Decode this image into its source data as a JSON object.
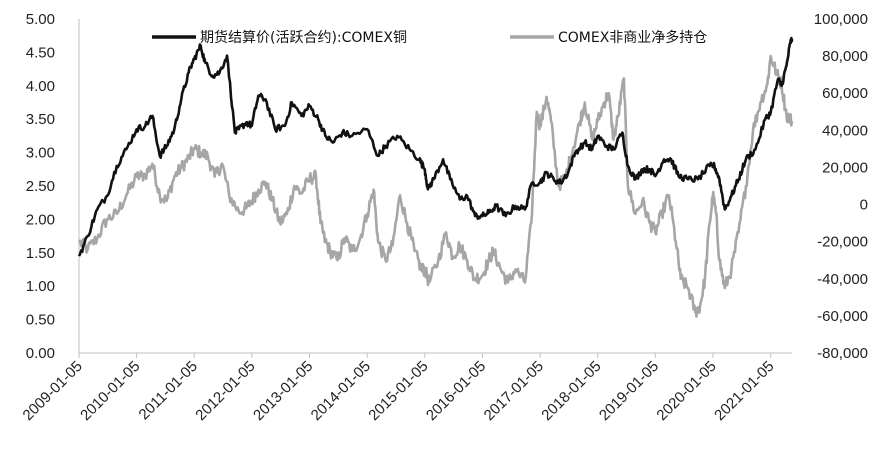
{
  "chart_data": {
    "type": "line",
    "title": "",
    "xlabel": "",
    "ylabel_left": "",
    "ylabel_right": "",
    "ylim_left": [
      0,
      5
    ],
    "ylim_right": [
      -80000,
      100000
    ],
    "xlim": [
      "2009-01-05",
      "2021-05-20"
    ],
    "left_ticks": [
      "0.00",
      "0.50",
      "1.00",
      "1.50",
      "2.00",
      "2.50",
      "3.00",
      "3.50",
      "4.00",
      "4.50",
      "5.00"
    ],
    "right_ticks": [
      "-80,000",
      "-60,000",
      "-40,000",
      "-20,000",
      "0",
      "20,000",
      "40,000",
      "60,000",
      "80,000",
      "100,000"
    ],
    "x_ticks": [
      "2009-01-05",
      "2010-01-05",
      "2011-01-05",
      "2012-01-05",
      "2013-01-05",
      "2014-01-05",
      "2015-01-05",
      "2016-01-05",
      "2017-01-05",
      "2018-01-05",
      "2019-01-05",
      "2020-01-05",
      "2021-01-05"
    ],
    "legend_position": "top",
    "grid": false,
    "series": [
      {
        "name": "期货结算价(活跃合约):COMEX铜",
        "axis": "left",
        "color": "#111111",
        "points": [
          [
            "2009-01-05",
            1.45
          ],
          [
            "2009-03-01",
            1.75
          ],
          [
            "2009-05-01",
            2.15
          ],
          [
            "2009-07-01",
            2.35
          ],
          [
            "2009-09-01",
            2.8
          ],
          [
            "2009-11-01",
            3.05
          ],
          [
            "2010-01-05",
            3.35
          ],
          [
            "2010-03-01",
            3.4
          ],
          [
            "2010-04-15",
            3.55
          ],
          [
            "2010-06-01",
            2.95
          ],
          [
            "2010-07-15",
            3.1
          ],
          [
            "2010-09-01",
            3.35
          ],
          [
            "2010-10-15",
            3.8
          ],
          [
            "2010-12-01",
            4.2
          ],
          [
            "2011-01-05",
            4.4
          ],
          [
            "2011-02-15",
            4.6
          ],
          [
            "2011-03-15",
            4.35
          ],
          [
            "2011-05-01",
            4.15
          ],
          [
            "2011-06-15",
            4.2
          ],
          [
            "2011-08-01",
            4.45
          ],
          [
            "2011-09-20",
            3.3
          ],
          [
            "2011-10-15",
            3.35
          ],
          [
            "2011-12-01",
            3.45
          ],
          [
            "2012-01-05",
            3.4
          ],
          [
            "2012-02-15",
            3.85
          ],
          [
            "2012-04-01",
            3.8
          ],
          [
            "2012-06-01",
            3.35
          ],
          [
            "2012-08-01",
            3.4
          ],
          [
            "2012-09-15",
            3.75
          ],
          [
            "2012-11-15",
            3.55
          ],
          [
            "2013-01-05",
            3.7
          ],
          [
            "2013-03-01",
            3.5
          ],
          [
            "2013-04-15",
            3.25
          ],
          [
            "2013-06-01",
            3.15
          ],
          [
            "2013-08-01",
            3.3
          ],
          [
            "2013-10-01",
            3.25
          ],
          [
            "2014-01-05",
            3.35
          ],
          [
            "2014-03-15",
            2.95
          ],
          [
            "2014-05-01",
            3.1
          ],
          [
            "2014-07-15",
            3.25
          ],
          [
            "2014-10-01",
            3.05
          ],
          [
            "2014-12-01",
            2.9
          ],
          [
            "2015-01-05",
            2.75
          ],
          [
            "2015-01-25",
            2.45
          ],
          [
            "2015-03-01",
            2.6
          ],
          [
            "2015-05-01",
            2.9
          ],
          [
            "2015-06-15",
            2.6
          ],
          [
            "2015-08-15",
            2.3
          ],
          [
            "2015-10-01",
            2.35
          ],
          [
            "2015-11-20",
            2.05
          ],
          [
            "2016-01-05",
            2.05
          ],
          [
            "2016-02-15",
            2.1
          ],
          [
            "2016-04-01",
            2.2
          ],
          [
            "2016-06-01",
            2.05
          ],
          [
            "2016-08-01",
            2.2
          ],
          [
            "2016-10-01",
            2.15
          ],
          [
            "2016-11-15",
            2.55
          ],
          [
            "2017-01-05",
            2.55
          ],
          [
            "2017-02-15",
            2.7
          ],
          [
            "2017-04-01",
            2.6
          ],
          [
            "2017-05-15",
            2.55
          ],
          [
            "2017-07-01",
            2.7
          ],
          [
            "2017-08-15",
            3.0
          ],
          [
            "2017-10-15",
            3.15
          ],
          [
            "2017-12-01",
            3.05
          ],
          [
            "2018-01-05",
            3.25
          ],
          [
            "2018-03-01",
            3.1
          ],
          [
            "2018-04-15",
            3.05
          ],
          [
            "2018-06-10",
            3.3
          ],
          [
            "2018-07-15",
            2.8
          ],
          [
            "2018-09-01",
            2.6
          ],
          [
            "2018-10-15",
            2.75
          ],
          [
            "2018-12-01",
            2.75
          ],
          [
            "2019-01-05",
            2.65
          ],
          [
            "2019-03-01",
            2.9
          ],
          [
            "2019-04-15",
            2.9
          ],
          [
            "2019-06-01",
            2.65
          ],
          [
            "2019-08-01",
            2.6
          ],
          [
            "2019-10-01",
            2.6
          ],
          [
            "2019-12-15",
            2.8
          ],
          [
            "2020-01-15",
            2.8
          ],
          [
            "2020-02-15",
            2.6
          ],
          [
            "2020-03-20",
            2.15
          ],
          [
            "2020-05-01",
            2.35
          ],
          [
            "2020-06-15",
            2.6
          ],
          [
            "2020-08-01",
            2.9
          ],
          [
            "2020-10-01",
            3.05
          ],
          [
            "2020-12-01",
            3.5
          ],
          [
            "2021-01-05",
            3.6
          ],
          [
            "2021-02-20",
            4.1
          ],
          [
            "2021-03-15",
            4.0
          ],
          [
            "2021-04-15",
            4.3
          ],
          [
            "2021-05-10",
            4.65
          ],
          [
            "2021-05-20",
            4.7
          ]
        ]
      },
      {
        "name": "COMEX非商业净多持仓",
        "axis": "right",
        "color": "#a6a6a6",
        "points": [
          [
            "2009-01-05",
            -20000
          ],
          [
            "2009-03-01",
            -24000
          ],
          [
            "2009-05-01",
            -18000
          ],
          [
            "2009-07-01",
            -8000
          ],
          [
            "2009-09-01",
            -5000
          ],
          [
            "2009-11-01",
            5000
          ],
          [
            "2010-01-05",
            15000
          ],
          [
            "2010-03-01",
            16000
          ],
          [
            "2010-04-15",
            22000
          ],
          [
            "2010-06-01",
            5000
          ],
          [
            "2010-07-15",
            2000
          ],
          [
            "2010-09-01",
            15000
          ],
          [
            "2010-10-15",
            20000
          ],
          [
            "2010-12-01",
            25000
          ],
          [
            "2011-01-05",
            30000
          ],
          [
            "2011-02-15",
            28000
          ],
          [
            "2011-04-01",
            26000
          ],
          [
            "2011-05-15",
            15000
          ],
          [
            "2011-07-01",
            22000
          ],
          [
            "2011-08-15",
            5000
          ],
          [
            "2011-10-15",
            -4000
          ],
          [
            "2011-12-01",
            -2000
          ],
          [
            "2012-01-05",
            2000
          ],
          [
            "2012-02-15",
            8000
          ],
          [
            "2012-04-01",
            12000
          ],
          [
            "2012-05-15",
            2000
          ],
          [
            "2012-07-01",
            -10000
          ],
          [
            "2012-08-15",
            -5000
          ],
          [
            "2012-10-01",
            10000
          ],
          [
            "2012-11-15",
            6000
          ],
          [
            "2013-01-05",
            14000
          ],
          [
            "2013-02-15",
            15000
          ],
          [
            "2013-03-15",
            -10000
          ],
          [
            "2013-04-15",
            -20000
          ],
          [
            "2013-05-15",
            -25000
          ],
          [
            "2013-07-01",
            -30000
          ],
          [
            "2013-08-15",
            -18000
          ],
          [
            "2013-10-01",
            -25000
          ],
          [
            "2013-11-15",
            -20000
          ],
          [
            "2014-01-05",
            -5000
          ],
          [
            "2014-02-15",
            8000
          ],
          [
            "2014-03-15",
            -20000
          ],
          [
            "2014-05-01",
            -30000
          ],
          [
            "2014-06-15",
            -22000
          ],
          [
            "2014-08-01",
            5000
          ],
          [
            "2014-09-15",
            -10000
          ],
          [
            "2014-11-01",
            -25000
          ],
          [
            "2014-12-15",
            -35000
          ],
          [
            "2015-01-05",
            -35000
          ],
          [
            "2015-02-01",
            -42000
          ],
          [
            "2015-04-01",
            -30000
          ],
          [
            "2015-05-20",
            -15000
          ],
          [
            "2015-07-01",
            -28000
          ],
          [
            "2015-08-15",
            -22000
          ],
          [
            "2015-10-01",
            -30000
          ],
          [
            "2015-11-15",
            -40000
          ],
          [
            "2016-01-05",
            -38000
          ],
          [
            "2016-02-15",
            -30000
          ],
          [
            "2016-03-15",
            -25000
          ],
          [
            "2016-05-01",
            -35000
          ],
          [
            "2016-06-15",
            -42000
          ],
          [
            "2016-08-01",
            -35000
          ],
          [
            "2016-10-01",
            -42000
          ],
          [
            "2016-11-10",
            -10000
          ],
          [
            "2016-12-15",
            50000
          ],
          [
            "2017-01-05",
            42000
          ],
          [
            "2017-02-15",
            58000
          ],
          [
            "2017-03-15",
            45000
          ],
          [
            "2017-05-01",
            10000
          ],
          [
            "2017-06-15",
            15000
          ],
          [
            "2017-08-01",
            30000
          ],
          [
            "2017-09-15",
            45000
          ],
          [
            "2017-10-15",
            55000
          ],
          [
            "2017-12-01",
            35000
          ],
          [
            "2018-01-05",
            45000
          ],
          [
            "2018-02-15",
            55000
          ],
          [
            "2018-03-15",
            60000
          ],
          [
            "2018-04-15",
            35000
          ],
          [
            "2018-05-15",
            48000
          ],
          [
            "2018-06-20",
            68000
          ],
          [
            "2018-07-15",
            10000
          ],
          [
            "2018-09-01",
            -5000
          ],
          [
            "2018-10-15",
            2000
          ],
          [
            "2018-12-01",
            -10000
          ],
          [
            "2019-01-05",
            -15000
          ],
          [
            "2019-02-15",
            -5000
          ],
          [
            "2019-04-01",
            5000
          ],
          [
            "2019-05-15",
            -20000
          ],
          [
            "2019-06-15",
            -40000
          ],
          [
            "2019-08-01",
            -45000
          ],
          [
            "2019-09-15",
            -58000
          ],
          [
            "2019-10-15",
            -55000
          ],
          [
            "2019-11-15",
            -40000
          ],
          [
            "2019-12-15",
            -10000
          ],
          [
            "2020-01-05",
            5000
          ],
          [
            "2020-01-25",
            -5000
          ],
          [
            "2020-02-15",
            -30000
          ],
          [
            "2020-03-20",
            -45000
          ],
          [
            "2020-05-01",
            -35000
          ],
          [
            "2020-06-15",
            -15000
          ],
          [
            "2020-08-01",
            10000
          ],
          [
            "2020-09-15",
            40000
          ],
          [
            "2020-11-01",
            55000
          ],
          [
            "2020-12-15",
            65000
          ],
          [
            "2021-01-05",
            80000
          ],
          [
            "2021-02-15",
            70000
          ],
          [
            "2021-03-15",
            65000
          ],
          [
            "2021-04-15",
            48000
          ],
          [
            "2021-05-20",
            45000
          ]
        ]
      }
    ]
  }
}
